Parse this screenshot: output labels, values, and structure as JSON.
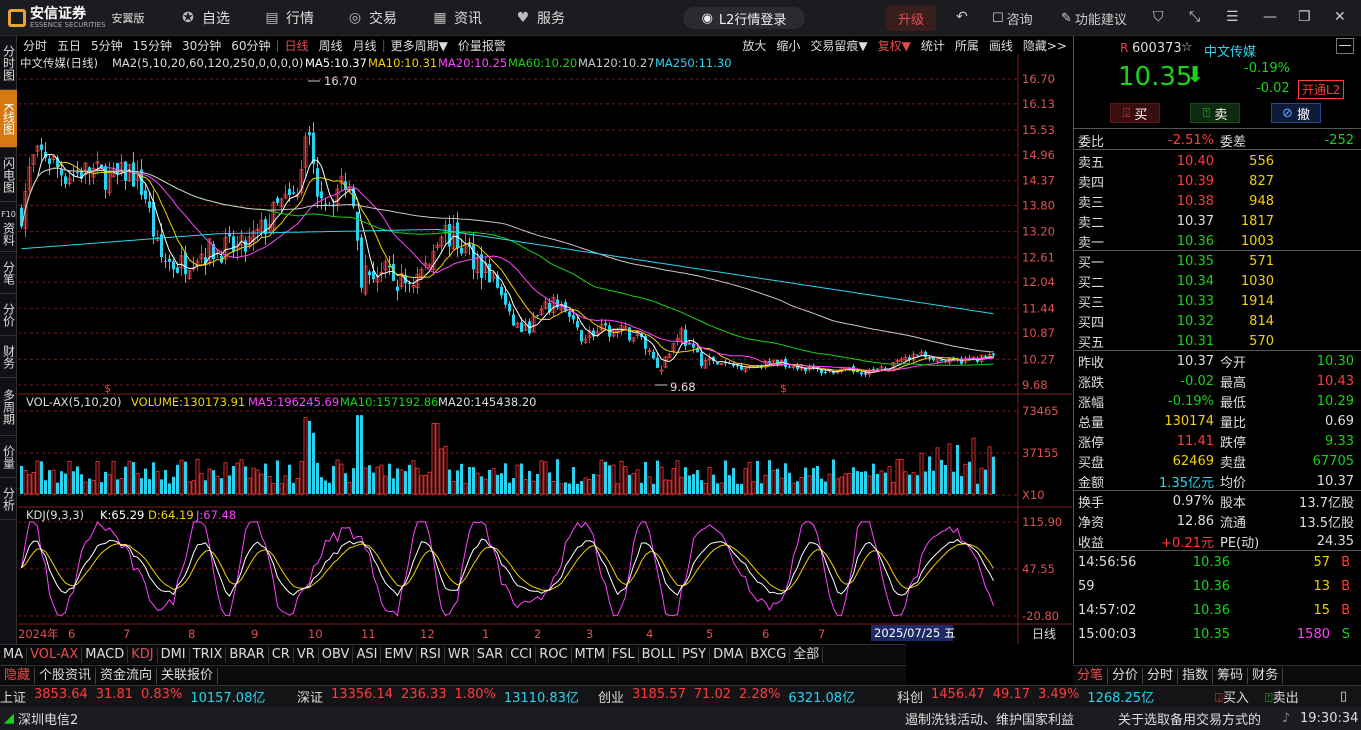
{
  "topbar": {
    "brand": "安信证券",
    "brand_sub": "ESSENCE SECURITIES",
    "edition": "安翼版",
    "nav": [
      {
        "label": "自选",
        "icon": "star-circle-icon"
      },
      {
        "label": "行情",
        "icon": "chart-icon"
      },
      {
        "label": "交易",
        "icon": "coin-icon"
      },
      {
        "label": "资讯",
        "icon": "document-icon"
      },
      {
        "label": "服务",
        "icon": "heart-icon"
      }
    ],
    "l2": "L2行情登录",
    "upgrade": "升级",
    "consult": "咨询",
    "feature": "功能建议"
  },
  "left_tabs": [
    "分时图",
    "K线图",
    "闪电图",
    "资料",
    "分笔",
    "分价",
    "财务",
    "多周期",
    "价量",
    "分析"
  ],
  "left_tabs_f10": "F10",
  "period_bar": [
    "分时",
    "五日",
    "5分钟",
    "15分钟",
    "30分钟",
    "60分钟",
    "日线",
    "周线",
    "月线",
    "更多周期▼",
    "价量报警"
  ],
  "period_active": "日线",
  "right_tools": [
    "放大",
    "缩小",
    "交易留痕▼",
    "复权▼",
    "统计",
    "所属",
    "画线",
    "隐藏>>"
  ],
  "main_legend": {
    "name": "中文传媒(日线)",
    "ma_params": "MA2(5,10,20,60,120,250,0,0,0,0)",
    "ma5": "MA5:10.37",
    "ma10": "MA10:10.31",
    "ma20": "MA20:10.25",
    "ma60": "MA60:10.20",
    "ma120": "MA120:10.27",
    "ma250": "MA250:11.30",
    "colors": {
      "ma5": "#ffffff",
      "ma10": "#f2d200",
      "ma20": "#ff44ff",
      "ma60": "#19d219",
      "ma120": "#c8c8c8",
      "ma250": "#2ad4f0",
      "up": "#ff3b3b",
      "down": "#2ad4f0"
    }
  },
  "price_axis": [
    "16.70",
    "16.13",
    "15.53",
    "14.96",
    "14.37",
    "13.80",
    "13.20",
    "12.61",
    "12.04",
    "11.44",
    "10.87",
    "10.27",
    "9.68"
  ],
  "max_label": "16.70",
  "min_label": "9.68",
  "vol_legend": {
    "name": "VOL-AX(5,10,20)",
    "volume": "VOLUME:130173.91",
    "ma5": "MA5:196245.69",
    "ma10": "MA10:157192.86",
    "ma20": "MA20:145438.20"
  },
  "vol_axis": [
    "73465",
    "37155",
    "X10"
  ],
  "kdj_legend": {
    "name": "KDJ(9,3,3)",
    "k": "K:65.29",
    "d": "D:64.19",
    "j": "J:67.48"
  },
  "kdj_axis": [
    "115.90",
    "47.55",
    "-20.80"
  ],
  "date_axis": {
    "labels": [
      "2024年",
      "6",
      "7",
      "8",
      "9",
      "10",
      "11",
      "12",
      "1",
      "2",
      "3",
      "4",
      "5",
      "6",
      "7"
    ],
    "cursor": "2025/07/25 五",
    "period": "日线"
  },
  "indicators": [
    "MA",
    "VOL-AX",
    "MACD",
    "KDJ",
    "DMI",
    "TRIX",
    "BRAR",
    "CR",
    "VR",
    "OBV",
    "ASI",
    "EMV",
    "RSI",
    "WR",
    "SAR",
    "CCI",
    "ROC",
    "MTM",
    "FSL",
    "BOLL",
    "PSY",
    "DMA",
    "BXCG",
    "全部"
  ],
  "indicators_active": [
    "VOL-AX",
    "KDJ"
  ],
  "sub_tabs": [
    "隐藏",
    "个股资讯",
    "资金流向",
    "关联报价"
  ],
  "stock": {
    "tag": "R",
    "code": "600373",
    "name": "中文传媒",
    "price": "10.35",
    "pct": "-0.19%",
    "chg": "-0.02",
    "l2btn": "开通L2",
    "buy": "买",
    "sell": "卖",
    "cancel": "撤"
  },
  "weibi": {
    "label1": "委比",
    "v1": "-2.51%",
    "label2": "委差",
    "v2": "-252"
  },
  "asks": [
    {
      "l": "卖五",
      "p": "10.40",
      "v": "556"
    },
    {
      "l": "卖四",
      "p": "10.39",
      "v": "827"
    },
    {
      "l": "卖三",
      "p": "10.38",
      "v": "948"
    },
    {
      "l": "卖二",
      "p": "10.37",
      "v": "1817"
    },
    {
      "l": "卖一",
      "p": "10.36",
      "v": "1003"
    }
  ],
  "bids": [
    {
      "l": "买一",
      "p": "10.35",
      "v": "571"
    },
    {
      "l": "买二",
      "p": "10.34",
      "v": "1030"
    },
    {
      "l": "买三",
      "p": "10.33",
      "v": "1914"
    },
    {
      "l": "买四",
      "p": "10.32",
      "v": "814"
    },
    {
      "l": "买五",
      "p": "10.31",
      "v": "570"
    }
  ],
  "stats": [
    {
      "l1": "昨收",
      "v1": "10.37",
      "l2": "今开",
      "v2": "10.30"
    },
    {
      "l1": "涨跌",
      "v1": "-0.02",
      "l2": "最高",
      "v2": "10.43"
    },
    {
      "l1": "涨幅",
      "v1": "-0.19%",
      "l2": "最低",
      "v2": "10.29"
    },
    {
      "l1": "总量",
      "v1": "130174",
      "l2": "量比",
      "v2": "0.69"
    },
    {
      "l1": "涨停",
      "v1": "11.41",
      "l2": "跌停",
      "v2": "9.33"
    },
    {
      "l1": "买盘",
      "v1": "62469",
      "l2": "卖盘",
      "v2": "67705"
    },
    {
      "l1": "金额",
      "v1": "1.35亿元",
      "l2": "均价",
      "v2": "10.37"
    }
  ],
  "stats2": [
    {
      "l1": "换手",
      "v1": "0.97%",
      "l2": "股本",
      "v2": "13.7亿股"
    },
    {
      "l1": "净资",
      "v1": "12.86",
      "l2": "流通",
      "v2": "13.5亿股"
    },
    {
      "l1": "收益",
      "v1": "+0.21元",
      "l2": "PE(动)",
      "v2": "24.35"
    }
  ],
  "ticks": [
    {
      "t": "14:56:56",
      "p": "10.36",
      "v": "57",
      "s": "B"
    },
    {
      "t": "59",
      "p": "10.36",
      "v": "13",
      "s": "B"
    },
    {
      "t": "14:57:02",
      "p": "10.36",
      "v": "15",
      "s": "B"
    },
    {
      "t": "15:00:03",
      "p": "10.35",
      "v": "1580",
      "s": "S"
    }
  ],
  "rp_tabs": [
    "分笔",
    "分价",
    "分时",
    "指数",
    "筹码",
    "财务"
  ],
  "indices": [
    {
      "n": "上证",
      "p": "3853.64",
      "c": "31.81",
      "pc": "0.83%",
      "a": "10157.08亿"
    },
    {
      "n": "深证",
      "p": "13356.14",
      "c": "236.33",
      "pc": "1.80%",
      "a": "13110.83亿"
    },
    {
      "n": "创业",
      "p": "3185.57",
      "c": "71.02",
      "pc": "2.28%",
      "a": "6321.08亿"
    },
    {
      "n": "科创",
      "p": "1456.47",
      "c": "49.17",
      "pc": "3.49%",
      "a": "1268.25亿"
    }
  ],
  "trade_btns": [
    "买入",
    "卖出"
  ],
  "status": {
    "net": "深圳电信2",
    "news1": "遏制洗钱活动、维护国家利益",
    "news2": "关于选取备用交易方式的",
    "time": "19:30:34"
  }
}
